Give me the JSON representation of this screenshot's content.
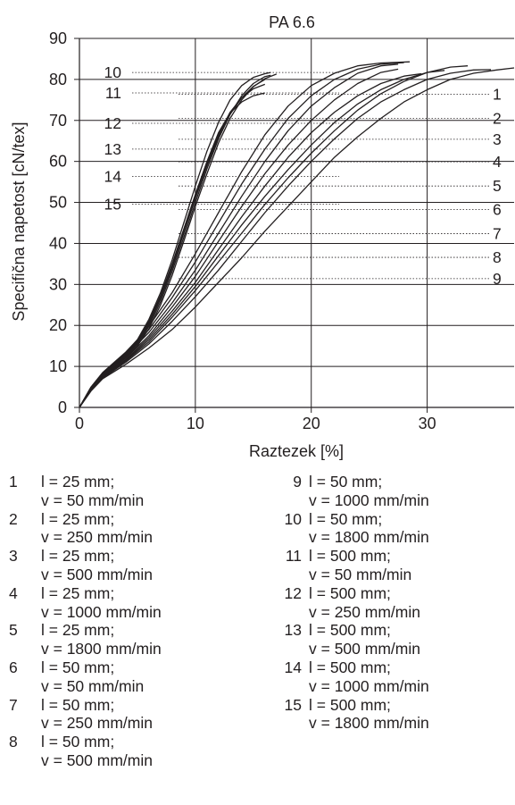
{
  "chart_data": {
    "type": "line",
    "title": "PA 6.6",
    "xlabel": "Raztezek [%]",
    "ylabel": "Specifična napetost [cN/tex]",
    "xlim": [
      0,
      37.5
    ],
    "ylim": [
      0,
      90
    ],
    "x_ticks": [
      0,
      10,
      20,
      30
    ],
    "y_ticks": [
      0,
      10,
      20,
      30,
      40,
      50,
      60,
      70,
      80,
      90
    ],
    "grid": true,
    "series": [
      {
        "name": "1",
        "l": "l = 25 mm;",
        "v": "v = 50 mm/min",
        "label_y": 76.4,
        "points": [
          [
            0,
            0
          ],
          [
            1,
            4
          ],
          [
            2,
            7
          ],
          [
            4,
            10.5
          ],
          [
            6,
            14.5
          ],
          [
            8,
            19
          ],
          [
            10,
            24.5
          ],
          [
            12,
            30.5
          ],
          [
            14,
            36.5
          ],
          [
            16,
            43
          ],
          [
            18,
            49
          ],
          [
            20,
            55
          ],
          [
            22,
            61
          ],
          [
            24,
            66
          ],
          [
            26,
            70.5
          ],
          [
            28,
            74.5
          ],
          [
            30,
            77.5
          ],
          [
            32,
            80
          ],
          [
            34,
            81.5
          ],
          [
            36,
            82.3
          ],
          [
            37.5,
            82.8
          ]
        ]
      },
      {
        "name": "2",
        "l": "l = 25 mm;",
        "v": "v = 250 mm/min",
        "label_y": 70.5,
        "points": [
          [
            0,
            0
          ],
          [
            1,
            4.2
          ],
          [
            2,
            7.2
          ],
          [
            4,
            11
          ],
          [
            6,
            15.5
          ],
          [
            8,
            21
          ],
          [
            10,
            27
          ],
          [
            12,
            33.5
          ],
          [
            14,
            40.5
          ],
          [
            16,
            47.5
          ],
          [
            18,
            54
          ],
          [
            20,
            60
          ],
          [
            22,
            65.5
          ],
          [
            24,
            70.5
          ],
          [
            26,
            74.5
          ],
          [
            28,
            77.5
          ],
          [
            30,
            80
          ],
          [
            32,
            81.5
          ],
          [
            34,
            82.3
          ],
          [
            35.5,
            82.4
          ]
        ]
      },
      {
        "name": "3",
        "l": "l = 25 mm;",
        "v": "v = 500 mm/min",
        "label_y": 65.4,
        "points": [
          [
            0,
            0
          ],
          [
            1,
            4.3
          ],
          [
            2,
            7.4
          ],
          [
            4,
            11.3
          ],
          [
            6,
            16
          ],
          [
            8,
            22
          ],
          [
            10,
            28.5
          ],
          [
            12,
            35.5
          ],
          [
            14,
            42.5
          ],
          [
            16,
            49.5
          ],
          [
            18,
            56
          ],
          [
            20,
            62
          ],
          [
            22,
            67.5
          ],
          [
            24,
            72.5
          ],
          [
            26,
            76.5
          ],
          [
            28,
            79.5
          ],
          [
            30,
            81.7
          ],
          [
            32,
            83
          ],
          [
            33.5,
            83.3
          ]
        ]
      },
      {
        "name": "4",
        "l": "l = 25 mm;",
        "v": "v = 1000 mm/min",
        "label_y": 59.9,
        "points": [
          [
            0,
            0
          ],
          [
            1,
            4.4
          ],
          [
            2,
            7.5
          ],
          [
            4,
            11.5
          ],
          [
            6,
            16.5
          ],
          [
            8,
            22.7
          ],
          [
            10,
            29.5
          ],
          [
            12,
            37
          ],
          [
            14,
            44.5
          ],
          [
            16,
            51.5
          ],
          [
            18,
            58
          ],
          [
            20,
            64
          ],
          [
            22,
            69.5
          ],
          [
            24,
            74
          ],
          [
            26,
            77.5
          ],
          [
            28,
            80
          ],
          [
            30,
            81.7
          ],
          [
            31.5,
            82.2
          ]
        ]
      },
      {
        "name": "5",
        "l": "l = 25 mm;",
        "v": "v = 1800 mm/min",
        "label_y": 54.0,
        "points": [
          [
            0,
            0
          ],
          [
            1,
            4.5
          ],
          [
            2,
            7.6
          ],
          [
            4,
            11.7
          ],
          [
            6,
            17
          ],
          [
            8,
            23.5
          ],
          [
            10,
            30.5
          ],
          [
            12,
            38.5
          ],
          [
            14,
            46.5
          ],
          [
            16,
            54
          ],
          [
            18,
            61
          ],
          [
            20,
            67
          ],
          [
            22,
            72
          ],
          [
            24,
            76
          ],
          [
            26,
            79
          ],
          [
            28,
            80.8
          ],
          [
            29.5,
            81.4
          ]
        ]
      },
      {
        "name": "6",
        "l": "l = 50 mm;",
        "v": "v = 50 mm/min",
        "label_y": 48.3,
        "points": [
          [
            0,
            0
          ],
          [
            1,
            4.6
          ],
          [
            2,
            7.8
          ],
          [
            4,
            12
          ],
          [
            6,
            17.5
          ],
          [
            8,
            24.5
          ],
          [
            10,
            32
          ],
          [
            12,
            40.5
          ],
          [
            14,
            49
          ],
          [
            16,
            57
          ],
          [
            18,
            64
          ],
          [
            20,
            70
          ],
          [
            22,
            75
          ],
          [
            24,
            79
          ],
          [
            26,
            81.7
          ],
          [
            27.5,
            82.5
          ]
        ]
      },
      {
        "name": "7",
        "l": "l = 50 mm;",
        "v": "v = 250 mm/min",
        "label_y": 42.4,
        "points": [
          [
            0,
            0
          ],
          [
            1,
            4.7
          ],
          [
            2,
            8
          ],
          [
            4,
            12.5
          ],
          [
            6,
            18.3
          ],
          [
            8,
            25.5
          ],
          [
            10,
            33.5
          ],
          [
            12,
            42.5
          ],
          [
            14,
            51.5
          ],
          [
            16,
            60
          ],
          [
            18,
            67.5
          ],
          [
            20,
            73.5
          ],
          [
            22,
            78
          ],
          [
            24,
            81.5
          ],
          [
            26,
            83.3
          ],
          [
            27.5,
            83.7
          ]
        ]
      },
      {
        "name": "8",
        "l": "l = 50 mm;",
        "v": "v = 500 mm/min",
        "label_y": 36.6,
        "points": [
          [
            0,
            0
          ],
          [
            1,
            4.8
          ],
          [
            2,
            8.2
          ],
          [
            4,
            12.8
          ],
          [
            6,
            19
          ],
          [
            8,
            26.8
          ],
          [
            10,
            35.5
          ],
          [
            12,
            45
          ],
          [
            14,
            54.5
          ],
          [
            16,
            63
          ],
          [
            18,
            70.5
          ],
          [
            20,
            76
          ],
          [
            22,
            80
          ],
          [
            24,
            82.5
          ],
          [
            26,
            83.7
          ],
          [
            28,
            84.1
          ]
        ]
      },
      {
        "name": "9",
        "l": "l = 50 mm;",
        "v": "v = 1000 mm/min",
        "label_y": 31.4,
        "points": [
          [
            0,
            0
          ],
          [
            1,
            4.9
          ],
          [
            2,
            8.4
          ],
          [
            4,
            13.2
          ],
          [
            6,
            19.8
          ],
          [
            8,
            28
          ],
          [
            10,
            37.5
          ],
          [
            12,
            47.5
          ],
          [
            14,
            57.5
          ],
          [
            16,
            66.5
          ],
          [
            18,
            73.5
          ],
          [
            20,
            78.5
          ],
          [
            22,
            81.5
          ],
          [
            24,
            83.3
          ],
          [
            26,
            84
          ],
          [
            28.5,
            84.3
          ]
        ]
      },
      {
        "name": "10",
        "l": "l = 50 mm;",
        "v": "v = 1800 mm/min",
        "label_y": 81.7,
        "points": [
          [
            0,
            0
          ],
          [
            1,
            5
          ],
          [
            2,
            8.5
          ],
          [
            3,
            11
          ],
          [
            4,
            13.5
          ],
          [
            5,
            16.5
          ],
          [
            6,
            21.5
          ],
          [
            7,
            28
          ],
          [
            8,
            36
          ],
          [
            9,
            45
          ],
          [
            10,
            54
          ],
          [
            11,
            62.5
          ],
          [
            12,
            69.5
          ],
          [
            13,
            75
          ],
          [
            14,
            78.5
          ],
          [
            15,
            80.5
          ],
          [
            16,
            81.4
          ],
          [
            16.5,
            81.7
          ]
        ]
      },
      {
        "name": "11",
        "l": "l = 500 mm;",
        "v": "v = 50 mm/min",
        "label_y": 76.7,
        "points": [
          [
            0,
            0
          ],
          [
            1,
            4.9
          ],
          [
            2,
            8.4
          ],
          [
            3,
            10.8
          ],
          [
            4,
            13.2
          ],
          [
            5,
            16.2
          ],
          [
            6,
            21
          ],
          [
            7,
            27.3
          ],
          [
            8,
            35
          ],
          [
            9,
            43.5
          ],
          [
            10,
            52
          ],
          [
            11,
            60
          ],
          [
            12,
            67
          ],
          [
            13,
            71.8
          ],
          [
            14,
            74.5
          ],
          [
            15,
            76
          ],
          [
            16,
            76.7
          ]
        ]
      },
      {
        "name": "12",
        "l": "l = 500 mm;",
        "v": "v = 250 mm/min",
        "label_y": 69.3,
        "points": [
          [
            0,
            0
          ],
          [
            1,
            4.8
          ],
          [
            2,
            8.3
          ],
          [
            3,
            10.6
          ],
          [
            4,
            13
          ],
          [
            5,
            16
          ],
          [
            6,
            20.7
          ],
          [
            7,
            27
          ],
          [
            8,
            34.5
          ],
          [
            9,
            43
          ],
          [
            10,
            51.5
          ],
          [
            11,
            59.5
          ],
          [
            12,
            66.5
          ],
          [
            13,
            72
          ],
          [
            14,
            75.5
          ],
          [
            15,
            77.7
          ],
          [
            16,
            78.8
          ]
        ]
      },
      {
        "name": "13",
        "l": "l = 500 mm;",
        "v": "v = 500 mm/min",
        "label_y": 63.0,
        "points": [
          [
            0,
            0
          ],
          [
            1,
            4.7
          ],
          [
            2,
            8.1
          ],
          [
            3,
            10.4
          ],
          [
            4,
            12.8
          ],
          [
            5,
            15.7
          ],
          [
            6,
            20.3
          ],
          [
            7,
            26.5
          ],
          [
            8,
            34
          ],
          [
            9,
            42.5
          ],
          [
            10,
            51
          ],
          [
            11,
            59
          ],
          [
            12,
            66
          ],
          [
            13,
            71.5
          ],
          [
            14,
            75.5
          ],
          [
            15,
            78.3
          ],
          [
            16,
            80
          ]
        ]
      },
      {
        "name": "14",
        "l": "l = 500 mm;",
        "v": "v = 1000 mm/min",
        "label_y": 56.3,
        "points": [
          [
            0,
            0
          ],
          [
            1,
            4.6
          ],
          [
            2,
            7.9
          ],
          [
            3,
            10.2
          ],
          [
            4,
            12.5
          ],
          [
            5,
            15.4
          ],
          [
            6,
            19.8
          ],
          [
            7,
            25.8
          ],
          [
            8,
            33.2
          ],
          [
            9,
            41.5
          ],
          [
            10,
            50
          ],
          [
            11,
            58.2
          ],
          [
            12,
            65.5
          ],
          [
            13,
            71.5
          ],
          [
            14,
            76
          ],
          [
            15,
            79
          ],
          [
            16,
            80.7
          ],
          [
            16.5,
            81
          ]
        ]
      },
      {
        "name": "15",
        "l": "l = 500 mm;",
        "v": "v = 1800 mm/min",
        "label_y": 49.6,
        "points": [
          [
            0,
            0
          ],
          [
            1,
            4.5
          ],
          [
            2,
            7.7
          ],
          [
            3,
            10
          ],
          [
            4,
            12.2
          ],
          [
            5,
            15
          ],
          [
            6,
            19.2
          ],
          [
            7,
            25
          ],
          [
            8,
            32.2
          ],
          [
            9,
            40.5
          ],
          [
            10,
            49
          ],
          [
            11,
            57
          ],
          [
            12,
            64.5
          ],
          [
            13,
            70.5
          ],
          [
            14,
            75
          ],
          [
            15,
            78.2
          ],
          [
            16,
            80.2
          ],
          [
            17,
            81.3
          ]
        ]
      }
    ],
    "legend_columns": [
      [
        "1",
        "2",
        "3",
        "4",
        "5",
        "6",
        "7",
        "8"
      ],
      [
        "9",
        "10",
        "11",
        "12",
        "13",
        "14",
        "15"
      ]
    ]
  }
}
